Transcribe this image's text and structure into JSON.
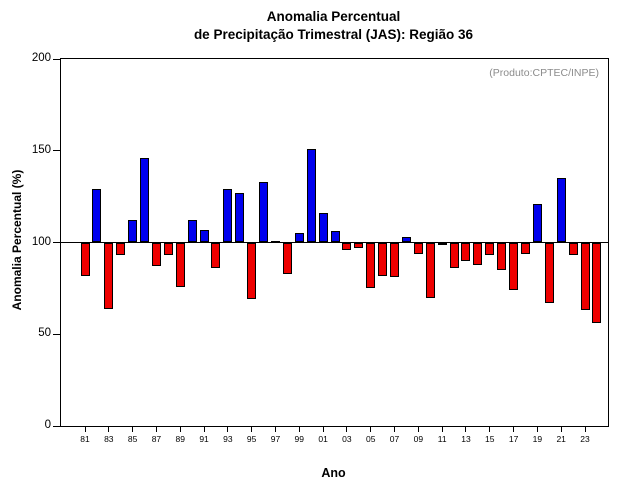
{
  "title": {
    "line1": "Anomalia Percentual",
    "line2": "de Precipitação Trimestral (JAS): Região 36"
  },
  "annotation": "(Produto:CPTEC/INPE)",
  "axes": {
    "xlabel": "Ano",
    "ylabel": "Anomalia Percentual (%)"
  },
  "chart_data": {
    "type": "bar",
    "title": "Anomalia Percentual de Precipitação Trimestral (JAS): Região 36",
    "xlabel": "Ano",
    "ylabel": "Anomalia Percentual (%)",
    "baseline": 100,
    "ylim": [
      0,
      200
    ],
    "yticks": [
      0,
      50,
      100,
      150,
      200
    ],
    "ytick_labels": [
      "0",
      "50",
      "100",
      "150",
      "200"
    ],
    "xtick_years": [
      1981,
      1983,
      1985,
      1987,
      1989,
      1991,
      1993,
      1995,
      1997,
      1999,
      2001,
      2003,
      2005,
      2007,
      2009,
      2011,
      2013,
      2015,
      2017,
      2019,
      2021,
      2023
    ],
    "xtick_labels": [
      "81",
      "83",
      "85",
      "87",
      "89",
      "91",
      "93",
      "95",
      "97",
      "99",
      "01",
      "03",
      "05",
      "07",
      "09",
      "11",
      "13",
      "15",
      "17",
      "19",
      "21",
      "23"
    ],
    "years": [
      1981,
      1982,
      1983,
      1984,
      1985,
      1986,
      1987,
      1988,
      1989,
      1990,
      1991,
      1992,
      1993,
      1994,
      1995,
      1996,
      1997,
      1998,
      1999,
      2000,
      2001,
      2002,
      2003,
      2004,
      2005,
      2006,
      2007,
      2008,
      2009,
      2010,
      2011,
      2012,
      2013,
      2014,
      2015,
      2016,
      2017,
      2018,
      2019,
      2020,
      2021,
      2022,
      2023,
      2024
    ],
    "values": [
      82,
      129,
      64,
      93,
      112,
      146,
      87,
      93,
      76,
      112,
      107,
      86,
      129,
      127,
      69,
      133,
      101,
      83,
      105,
      151,
      116,
      106,
      96,
      97,
      75,
      82,
      81,
      103,
      94,
      70,
      99,
      86,
      90,
      88,
      93,
      85,
      74,
      94,
      121,
      67,
      135,
      93,
      63,
      56
    ],
    "colors": {
      "above_baseline": "#0000ee",
      "below_baseline": "#ee0000",
      "edge": "#000000",
      "annotation_gray": "#8c8c8c"
    },
    "legend": "none",
    "grid": "off"
  }
}
